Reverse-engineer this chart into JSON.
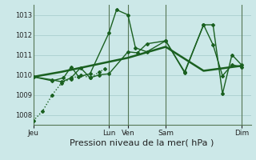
{
  "bg_color": "#cce8e8",
  "grid_color": "#aacfcf",
  "line_color": "#1a6020",
  "xlabel": "Pression niveau de la mer( hPa )",
  "xlabel_fontsize": 8,
  "ylim": [
    1007.5,
    1013.5
  ],
  "yticks": [
    1008,
    1009,
    1010,
    1011,
    1012,
    1013
  ],
  "ytick_fontsize": 6,
  "xtick_labels": [
    "Jeu",
    "Lun",
    "Ven",
    "Sam",
    "Dim"
  ],
  "xtick_positions": [
    0,
    4.0,
    5.0,
    7.0,
    11.0
  ],
  "xlim": [
    0,
    11.5
  ],
  "vlines": [
    4.0,
    5.0,
    7.0,
    11.0
  ],
  "series": [
    {
      "x": [
        0,
        0.5,
        1.0,
        1.5,
        2.0,
        2.5,
        3.0,
        3.5,
        3.8
      ],
      "y": [
        1007.7,
        1008.2,
        1009.0,
        1009.6,
        1009.8,
        1010.0,
        1009.85,
        1010.15,
        1010.3
      ],
      "linestyle": ":",
      "marker": "D",
      "markersize": 2.0,
      "linewidth": 1.0
    },
    {
      "x": [
        0,
        1.0,
        1.6,
        2.0,
        2.4,
        3.0,
        4.0,
        4.4,
        5.0,
        5.4,
        6.0,
        7.0,
        8.0,
        9.0,
        9.5,
        10.0,
        10.5,
        11.0
      ],
      "y": [
        1009.9,
        1009.7,
        1009.85,
        1010.4,
        1009.9,
        1010.05,
        1012.1,
        1013.25,
        1013.0,
        1011.35,
        1011.15,
        1011.7,
        1010.15,
        1012.5,
        1012.5,
        1009.05,
        1011.0,
        1010.5
      ],
      "linestyle": "-",
      "marker": "D",
      "markersize": 2.0,
      "linewidth": 1.0
    },
    {
      "x": [
        0,
        1.0,
        1.5,
        2.0,
        2.5,
        3.0,
        3.5,
        4.0,
        5.0,
        5.5,
        6.0,
        7.0,
        8.0,
        9.0,
        9.5,
        10.0,
        10.5,
        11.0
      ],
      "y": [
        1009.9,
        1009.75,
        1009.65,
        1009.85,
        1010.35,
        1009.85,
        1010.0,
        1010.05,
        1011.15,
        1011.1,
        1011.55,
        1011.7,
        1010.1,
        1012.5,
        1011.5,
        1009.95,
        1010.5,
        1010.4
      ],
      "linestyle": "-",
      "marker": "D",
      "markersize": 2.0,
      "linewidth": 1.0
    },
    {
      "x": [
        0,
        1.5,
        3.0,
        5.0,
        7.0,
        9.0,
        11.0
      ],
      "y": [
        1009.9,
        1010.15,
        1010.45,
        1010.85,
        1011.4,
        1010.2,
        1010.45
      ],
      "linestyle": "-",
      "marker": null,
      "markersize": 0,
      "linewidth": 1.8
    }
  ]
}
